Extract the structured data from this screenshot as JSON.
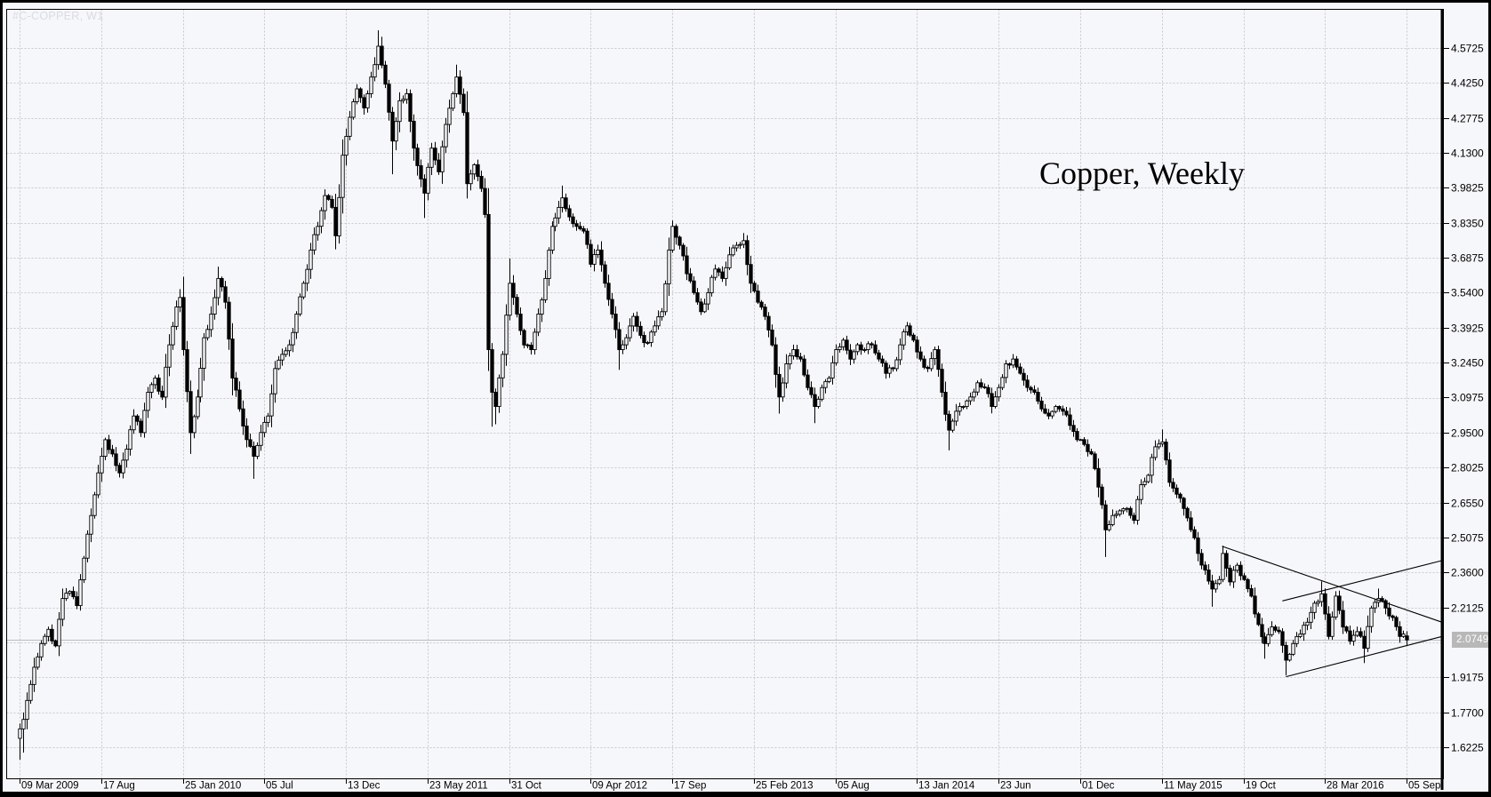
{
  "window": {
    "watermark": "#C-COPPER, W1",
    "annotation": "Copper, Weekly"
  },
  "colors": {
    "background": "#f6f7fa",
    "grid": "#c9cacd",
    "frame": "#000000",
    "candle_outline": "#000000",
    "bull_fill": "#f9fafc",
    "bear_fill": "#000000",
    "axis_text": "#000000",
    "watermark_text": "#d9dbe3",
    "bid_line": "#b9bcc3",
    "price_box_bg": "#b8b8b8",
    "price_box_text": "#ffffff",
    "trendline": "#000000"
  },
  "chart_data": {
    "type": "candlestick",
    "symbol": "#C-COPPER",
    "timeframe": "W1 weekly",
    "title_annotation": "Copper, Weekly",
    "current_price": "2.0749",
    "grid_style": "dashed",
    "x_tick_labels": [
      "09 Mar 2009",
      "17 Aug",
      "25 Jan 2010",
      "05 Jul",
      "13 Dec",
      "23 May 2011",
      "31 Oct",
      "09 Apr 2012",
      "17 Sep",
      "25 Feb 2013",
      "05 Aug",
      "13 Jan 2014",
      "23 Jun",
      "01 Dec",
      "11 May 2015",
      "19 Oct",
      "28 Mar 2016",
      "05 Sep"
    ],
    "weeks_per_x_tick": 23,
    "y_tick_labels": [
      "4.5725",
      "4.4250",
      "4.2775",
      "4.1300",
      "3.9825",
      "3.8350",
      "3.6875",
      "3.5400",
      "3.3925",
      "3.2450",
      "3.0975",
      "2.9500",
      "2.8025",
      "2.6550",
      "2.5075",
      "2.3600",
      "2.2125",
      "1.9175",
      "1.7700",
      "1.6225"
    ],
    "y_axis_top": 4.5725,
    "y_axis_step": 0.1475,
    "y_axis_bottom": 1.6225,
    "bars_total": 392,
    "first_open": 1.66,
    "weekly_close_anchors": [
      [
        0,
        1.7
      ],
      [
        1,
        1.74
      ],
      [
        2,
        1.82
      ],
      [
        4,
        1.96
      ],
      [
        6,
        2.06
      ],
      [
        8,
        2.12
      ],
      [
        10,
        2.05
      ],
      [
        12,
        2.25
      ],
      [
        14,
        2.28
      ],
      [
        16,
        2.22
      ],
      [
        18,
        2.42
      ],
      [
        20,
        2.6
      ],
      [
        22,
        2.78
      ],
      [
        24,
        2.92
      ],
      [
        26,
        2.86
      ],
      [
        28,
        2.78
      ],
      [
        30,
        2.88
      ],
      [
        32,
        3.02
      ],
      [
        34,
        2.95
      ],
      [
        36,
        3.12
      ],
      [
        38,
        3.18
      ],
      [
        40,
        3.1
      ],
      [
        42,
        3.32
      ],
      [
        44,
        3.48
      ],
      [
        45,
        3.52
      ],
      [
        46,
        3.3
      ],
      [
        48,
        2.95
      ],
      [
        50,
        3.1
      ],
      [
        52,
        3.35
      ],
      [
        54,
        3.45
      ],
      [
        56,
        3.6
      ],
      [
        58,
        3.5
      ],
      [
        60,
        3.18
      ],
      [
        62,
        3.05
      ],
      [
        64,
        2.92
      ],
      [
        66,
        2.85
      ],
      [
        68,
        2.95
      ],
      [
        70,
        3.02
      ],
      [
        72,
        3.22
      ],
      [
        74,
        3.28
      ],
      [
        76,
        3.32
      ],
      [
        78,
        3.45
      ],
      [
        80,
        3.58
      ],
      [
        82,
        3.72
      ],
      [
        84,
        3.82
      ],
      [
        86,
        3.95
      ],
      [
        88,
        3.9
      ],
      [
        89,
        3.78
      ],
      [
        91,
        4.12
      ],
      [
        93,
        4.28
      ],
      [
        95,
        4.4
      ],
      [
        97,
        4.32
      ],
      [
        99,
        4.45
      ],
      [
        101,
        4.58
      ],
      [
        103,
        4.42
      ],
      [
        105,
        4.18
      ],
      [
        107,
        4.35
      ],
      [
        109,
        4.38
      ],
      [
        111,
        4.15
      ],
      [
        113,
        4.02
      ],
      [
        114,
        3.96
      ],
      [
        116,
        4.15
      ],
      [
        118,
        4.05
      ],
      [
        120,
        4.25
      ],
      [
        122,
        4.38
      ],
      [
        123,
        4.45
      ],
      [
        125,
        4.3
      ],
      [
        126,
        4.0
      ],
      [
        128,
        4.08
      ],
      [
        130,
        3.98
      ],
      [
        131,
        3.87
      ],
      [
        132,
        3.3
      ],
      [
        133,
        3.12
      ],
      [
        134,
        3.06
      ],
      [
        136,
        3.28
      ],
      [
        138,
        3.58
      ],
      [
        140,
        3.45
      ],
      [
        142,
        3.32
      ],
      [
        144,
        3.3
      ],
      [
        146,
        3.45
      ],
      [
        148,
        3.6
      ],
      [
        150,
        3.82
      ],
      [
        152,
        3.9
      ],
      [
        153,
        3.94
      ],
      [
        155,
        3.86
      ],
      [
        157,
        3.82
      ],
      [
        159,
        3.8
      ],
      [
        161,
        3.66
      ],
      [
        163,
        3.72
      ],
      [
        165,
        3.58
      ],
      [
        167,
        3.45
      ],
      [
        169,
        3.3
      ],
      [
        171,
        3.35
      ],
      [
        173,
        3.44
      ],
      [
        175,
        3.36
      ],
      [
        177,
        3.33
      ],
      [
        179,
        3.4
      ],
      [
        181,
        3.46
      ],
      [
        183,
        3.72
      ],
      [
        184,
        3.82
      ],
      [
        186,
        3.74
      ],
      [
        188,
        3.62
      ],
      [
        190,
        3.54
      ],
      [
        192,
        3.46
      ],
      [
        194,
        3.54
      ],
      [
        196,
        3.64
      ],
      [
        198,
        3.6
      ],
      [
        200,
        3.7
      ],
      [
        202,
        3.74
      ],
      [
        204,
        3.76
      ],
      [
        206,
        3.58
      ],
      [
        208,
        3.5
      ],
      [
        210,
        3.44
      ],
      [
        212,
        3.32
      ],
      [
        214,
        3.1
      ],
      [
        216,
        3.24
      ],
      [
        218,
        3.3
      ],
      [
        220,
        3.26
      ],
      [
        222,
        3.14
      ],
      [
        224,
        3.06
      ],
      [
        226,
        3.14
      ],
      [
        228,
        3.18
      ],
      [
        230,
        3.3
      ],
      [
        232,
        3.34
      ],
      [
        234,
        3.26
      ],
      [
        236,
        3.32
      ],
      [
        238,
        3.3
      ],
      [
        240,
        3.32
      ],
      [
        242,
        3.26
      ],
      [
        244,
        3.2
      ],
      [
        246,
        3.22
      ],
      [
        248,
        3.32
      ],
      [
        250,
        3.4
      ],
      [
        252,
        3.34
      ],
      [
        254,
        3.26
      ],
      [
        256,
        3.22
      ],
      [
        258,
        3.3
      ],
      [
        260,
        3.12
      ],
      [
        262,
        2.96
      ],
      [
        264,
        3.04
      ],
      [
        266,
        3.06
      ],
      [
        268,
        3.1
      ],
      [
        270,
        3.16
      ],
      [
        272,
        3.14
      ],
      [
        274,
        3.06
      ],
      [
        276,
        3.14
      ],
      [
        278,
        3.24
      ],
      [
        280,
        3.26
      ],
      [
        282,
        3.2
      ],
      [
        284,
        3.14
      ],
      [
        286,
        3.12
      ],
      [
        288,
        3.05
      ],
      [
        290,
        3.02
      ],
      [
        292,
        3.06
      ],
      [
        294,
        3.04
      ],
      [
        296,
        2.98
      ],
      [
        298,
        2.92
      ],
      [
        300,
        2.9
      ],
      [
        302,
        2.86
      ],
      [
        304,
        2.72
      ],
      [
        306,
        2.54
      ],
      [
        308,
        2.6
      ],
      [
        310,
        2.62
      ],
      [
        312,
        2.63
      ],
      [
        314,
        2.58
      ],
      [
        316,
        2.73
      ],
      [
        318,
        2.77
      ],
      [
        320,
        2.89
      ],
      [
        322,
        2.91
      ],
      [
        324,
        2.74
      ],
      [
        326,
        2.69
      ],
      [
        328,
        2.63
      ],
      [
        330,
        2.54
      ],
      [
        332,
        2.44
      ],
      [
        334,
        2.37
      ],
      [
        336,
        2.29
      ],
      [
        338,
        2.33
      ],
      [
        339,
        2.44
      ],
      [
        341,
        2.32
      ],
      [
        343,
        2.39
      ],
      [
        345,
        2.33
      ],
      [
        347,
        2.26
      ],
      [
        349,
        2.14
      ],
      [
        351,
        2.06
      ],
      [
        353,
        2.13
      ],
      [
        355,
        2.11
      ],
      [
        357,
        1.99
      ],
      [
        359,
        2.06
      ],
      [
        361,
        2.1
      ],
      [
        363,
        2.15
      ],
      [
        365,
        2.23
      ],
      [
        367,
        2.27
      ],
      [
        369,
        2.09
      ],
      [
        371,
        2.26
      ],
      [
        373,
        2.13
      ],
      [
        375,
        2.07
      ],
      [
        377,
        2.11
      ],
      [
        379,
        2.04
      ],
      [
        381,
        2.21
      ],
      [
        383,
        2.25
      ],
      [
        385,
        2.21
      ],
      [
        387,
        2.17
      ],
      [
        389,
        2.09
      ],
      [
        390,
        2.1
      ],
      [
        391,
        2.0749
      ]
    ],
    "hl_overrides": [
      [
        0,
        "l",
        1.57
      ],
      [
        1,
        "l",
        1.6
      ],
      [
        45,
        "h",
        3.555
      ],
      [
        48,
        "l",
        2.86
      ],
      [
        56,
        "h",
        3.65
      ],
      [
        66,
        "l",
        2.755
      ],
      [
        101,
        "h",
        4.647
      ],
      [
        105,
        "l",
        4.04
      ],
      [
        114,
        "l",
        3.855
      ],
      [
        123,
        "h",
        4.502
      ],
      [
        132,
        "l",
        3.21
      ],
      [
        133,
        "l",
        2.975
      ],
      [
        134,
        "l",
        2.985
      ],
      [
        138,
        "h",
        3.685
      ],
      [
        153,
        "h",
        3.992
      ],
      [
        169,
        "l",
        3.215
      ],
      [
        184,
        "h",
        3.845
      ],
      [
        204,
        "h",
        3.792
      ],
      [
        214,
        "l",
        3.03
      ],
      [
        224,
        "l",
        2.99
      ],
      [
        262,
        "l",
        2.875
      ],
      [
        306,
        "l",
        2.425
      ],
      [
        322,
        "h",
        2.963
      ],
      [
        336,
        "l",
        2.215
      ],
      [
        339,
        "h",
        2.473
      ],
      [
        351,
        "l",
        1.996
      ],
      [
        357,
        "l",
        1.925
      ],
      [
        367,
        "h",
        2.322
      ],
      [
        379,
        "l",
        1.978
      ],
      [
        383,
        "h",
        2.292
      ]
    ],
    "last_bar": {
      "open": 2.092,
      "high": 2.112,
      "low": 2.052,
      "close": 2.0749
    },
    "trendlines": [
      {
        "name": "descending-resistance",
        "from_bar": 339,
        "from_price": 2.47,
        "to_bar": 401,
        "to_price": 2.15
      },
      {
        "name": "rising-upper-line",
        "from_bar": 356,
        "from_price": 2.24,
        "to_bar": 401,
        "to_price": 2.41
      },
      {
        "name": "rising-support-line",
        "from_bar": 357,
        "from_price": 1.92,
        "to_bar": 401,
        "to_price": 2.09
      }
    ]
  }
}
